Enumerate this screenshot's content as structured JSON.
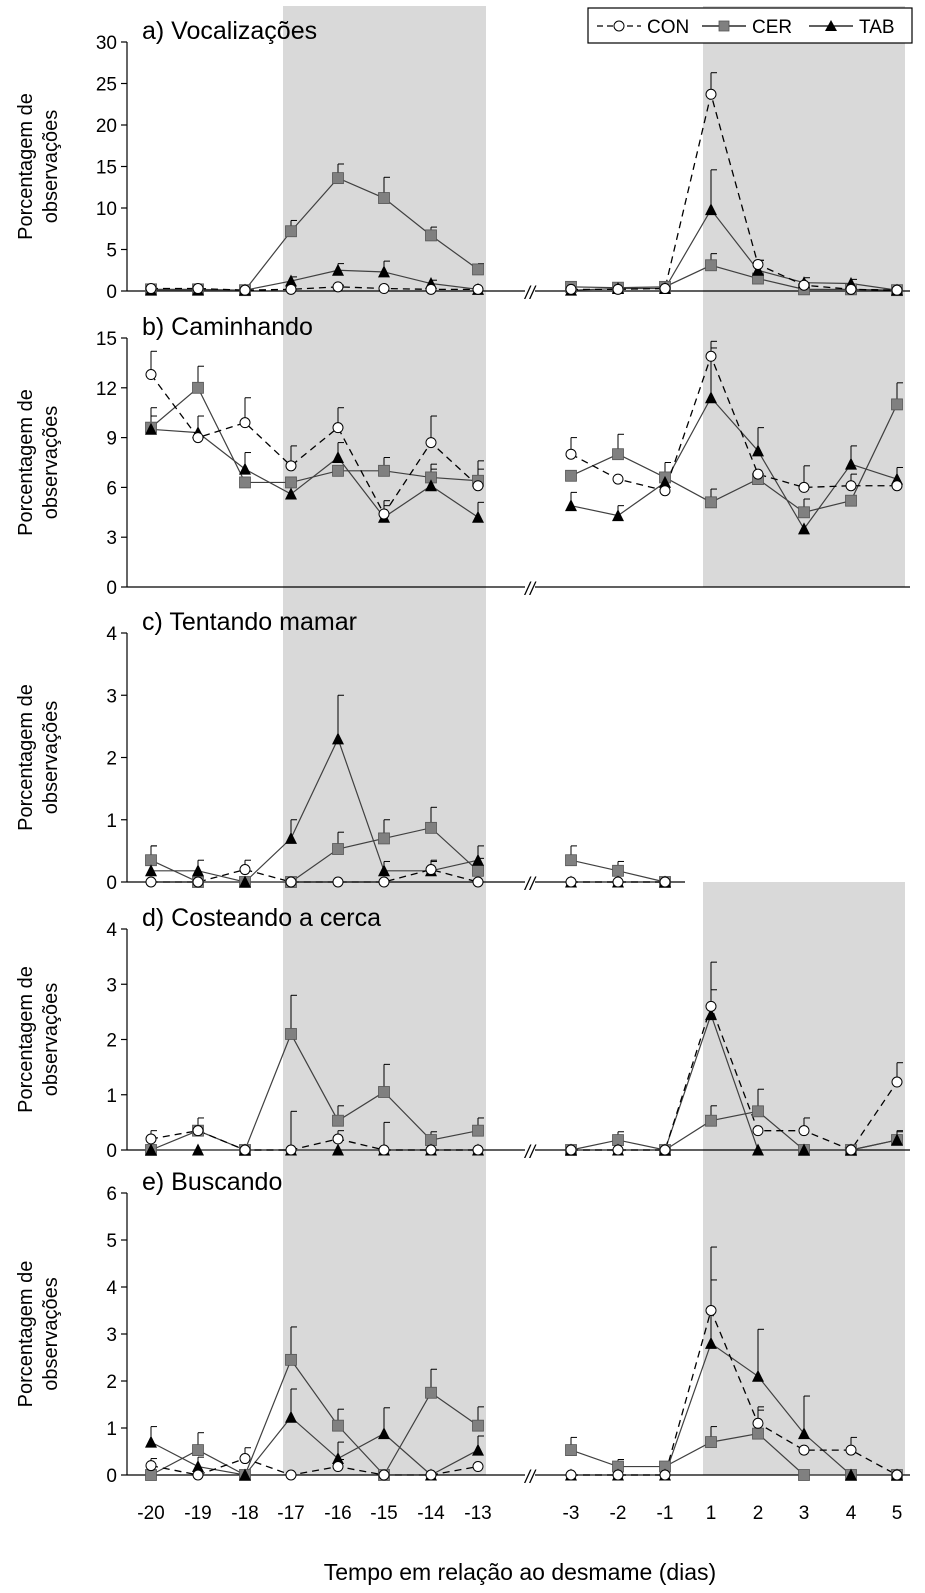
{
  "legend": {
    "items": [
      {
        "label": "CON",
        "marker": "circle-open",
        "dash": true
      },
      {
        "label": "CER",
        "marker": "square-gray",
        "dash": false
      },
      {
        "label": "TAB",
        "marker": "triangle-black",
        "dash": false
      }
    ],
    "placement": "top-right"
  },
  "x_title": "Tempo em relação ao desmame (dias)",
  "x_ticks": [
    "-20",
    "-19",
    "-18",
    "-17",
    "-16",
    "-15",
    "-14",
    "-13",
    "-3",
    "-2",
    "-1",
    "1",
    "2",
    "3",
    "4",
    "5"
  ],
  "break_mark": "//",
  "y_title_line1": "Porcentagem de",
  "y_title_line2": "observações",
  "colors": {
    "shade": "#d9d9d9",
    "cer_fill": "#808080",
    "tab_fill": "#000000",
    "con_fill": "#ffffff",
    "line": "#404040"
  },
  "chart_data": [
    {
      "type": "line",
      "title": "a) Vocalizações",
      "ylabel": "Porcentagem de observações",
      "xlabel": "Tempo em relação ao desmame (dias)",
      "ylim": [
        0,
        30
      ],
      "yticks": [
        "0",
        "5",
        "10",
        "15",
        "20",
        "25",
        "30"
      ],
      "shaded": [
        [
          -17,
          -13
        ],
        [
          1,
          5
        ]
      ],
      "x": [
        -20,
        -19,
        -18,
        -17,
        -16,
        -15,
        -14,
        -13,
        -3,
        -2,
        -1,
        1,
        2,
        3,
        4,
        5
      ],
      "series": [
        {
          "name": "CON",
          "values": [
            0.3,
            0.3,
            0.1,
            0.2,
            0.5,
            0.3,
            0.2,
            0.2,
            0.2,
            0.2,
            0.3,
            23.7,
            3.2,
            0.7,
            0.2,
            0.1
          ],
          "errors": [
            0,
            0,
            0,
            0,
            0.2,
            0,
            0,
            0,
            0,
            0,
            0,
            2.6,
            0.5,
            0.3,
            0,
            0
          ]
        },
        {
          "name": "CER",
          "values": [
            0.2,
            0.2,
            0.1,
            7.2,
            13.6,
            11.2,
            6.7,
            2.6,
            0.5,
            0.4,
            0.5,
            3.1,
            1.5,
            0.2,
            0.2,
            0.1
          ],
          "errors": [
            0.1,
            0.1,
            0,
            1.3,
            1.7,
            2.5,
            1.0,
            0.7,
            0,
            0,
            0,
            1.4,
            0.5,
            0,
            0,
            0
          ]
        },
        {
          "name": "TAB",
          "values": [
            0.1,
            0.1,
            0.1,
            1.2,
            2.5,
            2.3,
            0.9,
            0.2,
            0.1,
            0.3,
            0.3,
            9.8,
            2.5,
            1.0,
            0.9,
            0.1
          ],
          "errors": [
            0,
            0,
            0,
            0.5,
            0.8,
            1.3,
            0.4,
            0,
            0,
            0,
            0,
            4.8,
            1.2,
            0.6,
            0.5,
            0
          ]
        }
      ]
    },
    {
      "type": "line",
      "title": "b) Caminhando",
      "ylabel": "Porcentagem de observações",
      "xlabel": "Tempo em relação ao desmame (dias)",
      "ylim": [
        0,
        15
      ],
      "yticks": [
        "0",
        "3",
        "6",
        "9",
        "12",
        "15"
      ],
      "shaded": [
        [
          -17,
          -13
        ],
        [
          1,
          5
        ]
      ],
      "x": [
        -20,
        -19,
        -18,
        -17,
        -16,
        -15,
        -14,
        -13,
        -3,
        -2,
        -1,
        1,
        2,
        3,
        4,
        5
      ],
      "series": [
        {
          "name": "CON",
          "values": [
            12.8,
            9.0,
            9.9,
            7.3,
            9.6,
            4.4,
            8.7,
            6.1,
            8.0,
            6.5,
            5.8,
            13.9,
            6.8,
            6.0,
            6.1,
            6.1
          ],
          "errors": [
            1.4,
            0,
            1.5,
            1.2,
            1.2,
            0.8,
            1.6,
            1.0,
            1.0,
            0,
            0,
            0.9,
            0,
            1.3,
            0.7,
            0
          ]
        },
        {
          "name": "CER",
          "values": [
            9.6,
            12.0,
            6.3,
            6.3,
            7.0,
            7.0,
            6.6,
            6.4,
            6.7,
            8.0,
            6.6,
            5.1,
            6.5,
            4.5,
            5.2,
            11.0
          ],
          "errors": [
            1.2,
            1.3,
            0,
            0,
            0,
            0.8,
            0.8,
            1.2,
            0,
            1.2,
            0.9,
            0.8,
            0,
            0.8,
            0,
            1.3
          ]
        },
        {
          "name": "TAB",
          "values": [
            9.5,
            9.3,
            7.1,
            5.6,
            7.8,
            4.2,
            6.1,
            4.2,
            4.9,
            4.3,
            6.3,
            11.4,
            8.2,
            3.5,
            7.4,
            6.5
          ],
          "errors": [
            0.8,
            1.0,
            1.0,
            0,
            0.9,
            0.7,
            1.0,
            0.9,
            0.8,
            0.6,
            0,
            3.0,
            1.4,
            0,
            1.1,
            0.7
          ]
        }
      ]
    },
    {
      "type": "line",
      "title": "c) Tentando mamar",
      "ylabel": "Porcentagem de observações",
      "xlabel": "Tempo em relação ao desmame (dias)",
      "ylim": [
        0,
        4
      ],
      "yticks": [
        "0",
        "1",
        "2",
        "3",
        "4"
      ],
      "shaded": [
        [
          -17,
          -13
        ]
      ],
      "x": [
        -20,
        -19,
        -18,
        -17,
        -16,
        -15,
        -14,
        -13,
        -3,
        -2,
        -1
      ],
      "series": [
        {
          "name": "CON",
          "values": [
            0.0,
            0.0,
            0.2,
            0.0,
            0.0,
            0.0,
            0.2,
            0.0,
            0.0,
            0.0,
            0.0
          ],
          "errors": [
            0,
            0,
            0.15,
            0,
            0,
            0,
            0.15,
            0,
            0,
            0,
            0
          ]
        },
        {
          "name": "CER",
          "values": [
            0.35,
            0.0,
            0.0,
            0.0,
            0.53,
            0.7,
            0.87,
            0.18,
            0.35,
            0.18,
            0.0
          ],
          "errors": [
            0.23,
            0,
            0,
            0,
            0.27,
            0.3,
            0.33,
            0.2,
            0.23,
            0.15,
            0
          ]
        },
        {
          "name": "TAB",
          "values": [
            0.18,
            0.18,
            0.0,
            0.7,
            2.3,
            0.18,
            0.18,
            0.35,
            0.0,
            0.0,
            0.0
          ],
          "errors": [
            0.4,
            0.17,
            0,
            0.3,
            0.7,
            0.15,
            0.15,
            0.23,
            0,
            0,
            0
          ]
        }
      ]
    },
    {
      "type": "line",
      "title": "d) Costeando a cerca",
      "ylabel": "Porcentagem de observações",
      "xlabel": "Tempo em relação ao desmame (dias)",
      "ylim": [
        0,
        4
      ],
      "yticks": [
        "0",
        "1",
        "2",
        "3",
        "4"
      ],
      "shaded": [
        [
          -17,
          -13
        ],
        [
          1,
          5
        ]
      ],
      "x": [
        -20,
        -19,
        -18,
        -17,
        -16,
        -15,
        -14,
        -13,
        -3,
        -2,
        -1,
        1,
        2,
        3,
        4,
        5
      ],
      "series": [
        {
          "name": "CON",
          "values": [
            0.2,
            0.35,
            0.0,
            0.0,
            0.2,
            0.0,
            0.0,
            0.0,
            0.0,
            0.0,
            0.0,
            2.6,
            0.35,
            0.35,
            0.0,
            1.23
          ],
          "errors": [
            0.15,
            0,
            0,
            0,
            0.15,
            0,
            0,
            0,
            0,
            0,
            0,
            0.8,
            0,
            0.23,
            0,
            0.35
          ]
        },
        {
          "name": "CER",
          "values": [
            0.0,
            0.35,
            0.0,
            2.1,
            0.53,
            1.05,
            0.18,
            0.35,
            0.0,
            0.18,
            0.0,
            0.53,
            0.7,
            0.0,
            0.0,
            0.18
          ],
          "errors": [
            0,
            0.23,
            0,
            0.7,
            0.27,
            0.5,
            0.15,
            0.23,
            0,
            0.15,
            0,
            0.27,
            0.4,
            0,
            0,
            0.15
          ]
        },
        {
          "name": "TAB",
          "values": [
            0.0,
            0.0,
            0.0,
            0.0,
            0.0,
            0.0,
            0.0,
            0.0,
            0.0,
            0.0,
            0.0,
            2.45,
            0.0,
            0.0,
            0.0,
            0.18
          ],
          "errors": [
            0,
            0,
            0,
            0.7,
            0,
            0.5,
            0,
            0,
            0,
            0,
            0,
            0.45,
            0,
            0,
            0,
            0.17
          ]
        }
      ]
    },
    {
      "type": "line",
      "title": "e) Buscando",
      "ylabel": "Porcentagem de observações",
      "xlabel": "Tempo em relação ao desmame (dias)",
      "ylim": [
        0,
        6
      ],
      "yticks": [
        "0",
        "1",
        "2",
        "3",
        "4",
        "5",
        "6"
      ],
      "shaded": [
        [
          -17,
          -13
        ],
        [
          1,
          5
        ]
      ],
      "x": [
        -20,
        -19,
        -18,
        -17,
        -16,
        -15,
        -14,
        -13,
        -3,
        -2,
        -1,
        1,
        2,
        3,
        4,
        5
      ],
      "series": [
        {
          "name": "CON",
          "values": [
            0.2,
            0.0,
            0.35,
            0.0,
            0.18,
            0.0,
            0.0,
            0.18,
            0.0,
            0.0,
            0.0,
            3.5,
            1.1,
            0.53,
            0.53,
            0.0
          ],
          "errors": [
            0.15,
            0,
            0.23,
            0,
            0.15,
            0,
            0,
            0,
            0,
            0,
            0,
            1.35,
            0.35,
            0,
            0.27,
            0
          ]
        },
        {
          "name": "CER",
          "values": [
            0.0,
            0.53,
            0.0,
            2.45,
            1.05,
            0.0,
            1.75,
            1.05,
            0.53,
            0.18,
            0.18,
            0.7,
            0.88,
            0.0,
            0.0,
            0.0
          ],
          "errors": [
            0,
            0.37,
            0,
            0.7,
            0.35,
            0,
            0.5,
            0.4,
            0.27,
            0.15,
            0,
            0.33,
            0.5,
            0,
            0,
            0
          ]
        },
        {
          "name": "TAB",
          "values": [
            0.7,
            0.18,
            0.0,
            1.23,
            0.35,
            0.88,
            0.0,
            0.53,
            0.0,
            0.0,
            0.0,
            2.8,
            2.1,
            0.88,
            0.0,
            0.0
          ],
          "errors": [
            0.33,
            0.2,
            0,
            0.6,
            0.35,
            0.55,
            0,
            0.3,
            0,
            0,
            0,
            1.35,
            1.0,
            0.8,
            0,
            0
          ]
        }
      ]
    }
  ]
}
